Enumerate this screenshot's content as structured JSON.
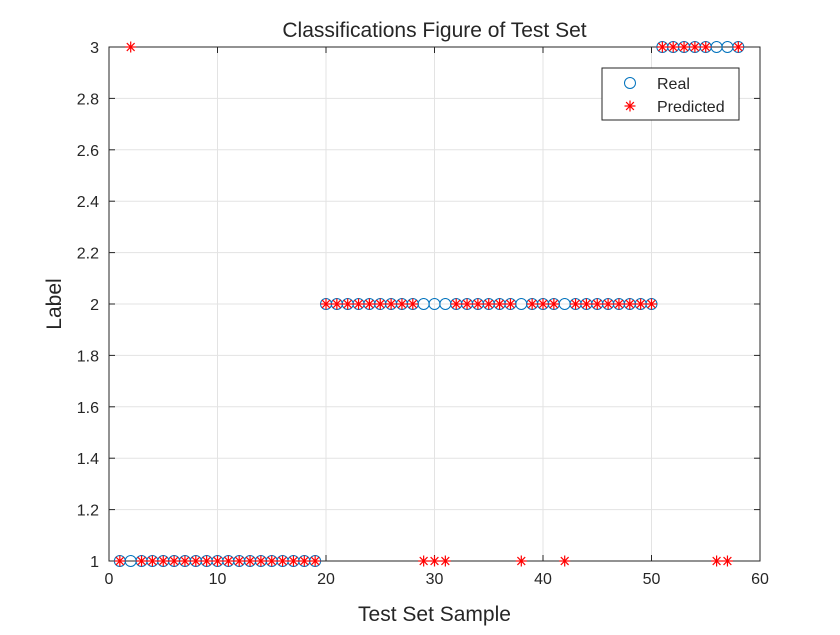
{
  "chart_data": {
    "type": "scatter",
    "title": "Classifications Figure of Test Set",
    "xlabel": "Test Set Sample",
    "ylabel": "Label",
    "xlim": [
      0,
      60
    ],
    "ylim": [
      1,
      3
    ],
    "xticks": [
      0,
      10,
      20,
      30,
      40,
      50,
      60
    ],
    "yticks": [
      1,
      1.2,
      1.4,
      1.6,
      1.8,
      2,
      2.2,
      2.4,
      2.6,
      2.8,
      3
    ],
    "grid": true,
    "legend_position": "top-right",
    "x": [
      1,
      2,
      3,
      4,
      5,
      6,
      7,
      8,
      9,
      10,
      11,
      12,
      13,
      14,
      15,
      16,
      17,
      18,
      19,
      20,
      21,
      22,
      23,
      24,
      25,
      26,
      27,
      28,
      29,
      30,
      31,
      32,
      33,
      34,
      35,
      36,
      37,
      38,
      39,
      40,
      41,
      42,
      43,
      44,
      45,
      46,
      47,
      48,
      49,
      50,
      51,
      52,
      53,
      54,
      55,
      56,
      57,
      58
    ],
    "series": [
      {
        "name": "Real",
        "marker": "circle",
        "color": "#0072BD",
        "values": [
          1,
          1,
          1,
          1,
          1,
          1,
          1,
          1,
          1,
          1,
          1,
          1,
          1,
          1,
          1,
          1,
          1,
          1,
          1,
          2,
          2,
          2,
          2,
          2,
          2,
          2,
          2,
          2,
          2,
          2,
          2,
          2,
          2,
          2,
          2,
          2,
          2,
          2,
          2,
          2,
          2,
          2,
          2,
          2,
          2,
          2,
          2,
          2,
          2,
          2,
          3,
          3,
          3,
          3,
          3,
          3,
          3,
          3
        ]
      },
      {
        "name": "Predicted",
        "marker": "asterisk",
        "color": "#FF0000",
        "values": [
          1,
          3,
          1,
          1,
          1,
          1,
          1,
          1,
          1,
          1,
          1,
          1,
          1,
          1,
          1,
          1,
          1,
          1,
          1,
          2,
          2,
          2,
          2,
          2,
          2,
          2,
          2,
          2,
          1,
          1,
          1,
          2,
          2,
          2,
          2,
          2,
          2,
          1,
          2,
          2,
          2,
          1,
          2,
          2,
          2,
          2,
          2,
          2,
          2,
          2,
          3,
          3,
          3,
          3,
          3,
          1,
          1,
          3
        ]
      }
    ]
  }
}
